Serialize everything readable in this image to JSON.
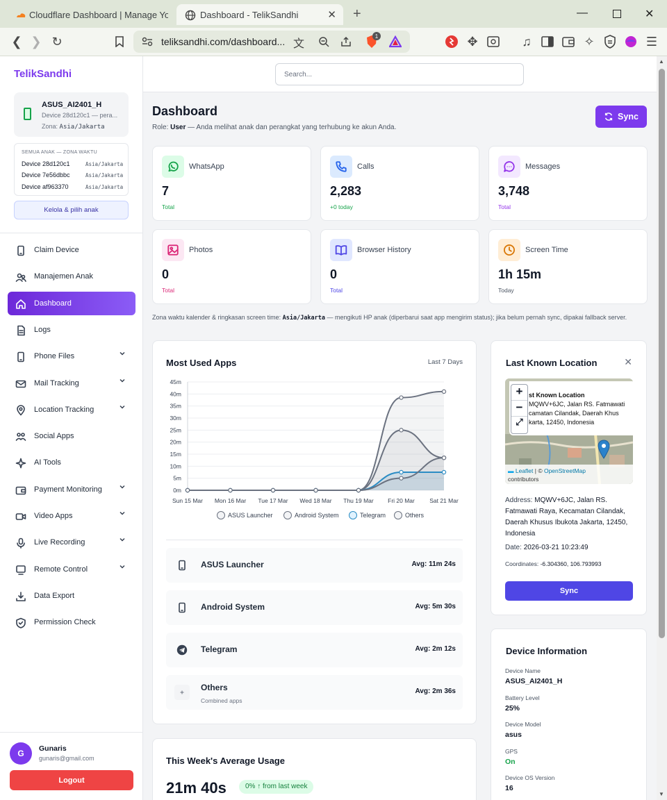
{
  "browser": {
    "tabs": [
      {
        "title": "Cloudflare Dashboard | Manage Your"
      },
      {
        "title": "Dashboard - TelikSandhi"
      }
    ],
    "url": "teliksandhi.com/dashboard...",
    "brave_badge": "1"
  },
  "sidebar": {
    "brand": "TelikSandhi",
    "device": {
      "name": "ASUS_AI2401_H",
      "sub": "Device 28d120c1 — pera...",
      "zone_label": "Zona:",
      "zone": "Asia/Jakarta"
    },
    "kids": {
      "title": "SEMUA ANAK — ZONA WAKTU",
      "items": [
        {
          "name": "Device 28d120c1",
          "zone": "Asia/Jakarta"
        },
        {
          "name": "Device 7e56dbbc",
          "zone": "Asia/Jakarta"
        },
        {
          "name": "Device af963370",
          "zone": "Asia/Jakarta"
        }
      ],
      "manage_label": "Kelola & pilih anak"
    },
    "nav": [
      {
        "label": "Claim Device",
        "icon": "phone-icon",
        "chevron": false
      },
      {
        "label": "Manajemen Anak",
        "icon": "users-icon",
        "chevron": false
      },
      {
        "label": "Dashboard",
        "icon": "home-icon",
        "chevron": false,
        "active": true
      },
      {
        "label": "Logs",
        "icon": "file-icon",
        "chevron": false
      },
      {
        "label": "Phone Files",
        "icon": "phone-icon",
        "chevron": true
      },
      {
        "label": "Mail Tracking",
        "icon": "mail-icon",
        "chevron": true
      },
      {
        "label": "Location Tracking",
        "icon": "map-pin-icon",
        "chevron": true
      },
      {
        "label": "Social Apps",
        "icon": "social-icon",
        "chevron": false
      },
      {
        "label": "AI Tools",
        "icon": "sparkle-icon",
        "chevron": false
      },
      {
        "label": "Payment Monitoring",
        "icon": "wallet-icon",
        "chevron": true
      },
      {
        "label": "Video Apps",
        "icon": "video-icon",
        "chevron": true
      },
      {
        "label": "Live Recording",
        "icon": "mic-icon",
        "chevron": true
      },
      {
        "label": "Remote Control",
        "icon": "remote-icon",
        "chevron": true
      },
      {
        "label": "Data Export",
        "icon": "download-icon",
        "chevron": false
      },
      {
        "label": "Permission Check",
        "icon": "shield-icon",
        "chevron": false
      }
    ],
    "user": {
      "initial": "G",
      "name": "Gunaris",
      "email": "gunaris@gmail.com"
    },
    "logout_label": "Logout"
  },
  "main": {
    "search_placeholder": "Search...",
    "title": "Dashboard",
    "role_prefix": "Role:",
    "role": "User",
    "role_desc": "— Anda melihat anak dan perangkat yang terhubung ke akun Anda.",
    "sync_label": "Sync",
    "stats": [
      {
        "label": "WhatsApp",
        "value": "7",
        "sub": "Total",
        "icon": "whatsapp-icon",
        "color": "#16a34a",
        "bg": "#dcfce7"
      },
      {
        "label": "Calls",
        "value": "2,283",
        "sub": "+0 today",
        "icon": "call-icon",
        "color": "#2563eb",
        "bg": "#dbeafe"
      },
      {
        "label": "Messages",
        "value": "3,748",
        "sub": "Total",
        "icon": "message-icon",
        "color": "#9333ea",
        "bg": "#f3e8ff"
      },
      {
        "label": "Photos",
        "value": "0",
        "sub": "Total",
        "icon": "photo-icon",
        "color": "#db2777",
        "bg": "#fce7f3"
      },
      {
        "label": "Browser History",
        "value": "0",
        "sub": "Total",
        "icon": "book-icon",
        "color": "#4f46e5",
        "bg": "#e0e7ff"
      },
      {
        "label": "Screen Time",
        "value": "1h 15m",
        "sub": "Today",
        "icon": "clock-icon",
        "color": "#d97706",
        "bg": "#ffedd5"
      }
    ],
    "tz_prefix": "Zona waktu kalender & ringkasan screen time:",
    "tz_value": "Asia/Jakarta",
    "tz_suffix": "— mengikuti HP anak (diperbarui saat app mengirim status); jika belum pernah sync, dipakai fallback server."
  },
  "most_used": {
    "title": "Most Used Apps",
    "range": "Last 7 Days",
    "apps": [
      {
        "name": "ASUS Launcher",
        "avg": "Avg: 11m 24s",
        "icon": "phone-icon"
      },
      {
        "name": "Android System",
        "avg": "Avg: 5m 30s",
        "icon": "phone-icon"
      },
      {
        "name": "Telegram",
        "avg": "Avg: 2m 12s",
        "icon": "telegram-icon"
      },
      {
        "name": "Others",
        "sub": "Combined apps",
        "avg": "Avg: 2m 36s",
        "icon": "plus-icon"
      }
    ]
  },
  "chart_data": {
    "type": "area",
    "categories": [
      "Sun 15 Mar",
      "Mon 16 Mar",
      "Tue 17 Mar",
      "Wed 18 Mar",
      "Thu 19 Mar",
      "Fri 20 Mar",
      "Sat 21 Mar"
    ],
    "y_ticks": [
      "0m",
      "5m",
      "10m",
      "15m",
      "20m",
      "25m",
      "30m",
      "35m",
      "40m",
      "45m"
    ],
    "ylim": [
      0,
      45
    ],
    "grid": true,
    "legend": "bottom",
    "series": [
      {
        "name": "ASUS Launcher",
        "values": [
          0,
          0,
          0,
          0,
          0,
          38.5,
          41
        ],
        "color": "#6b7280"
      },
      {
        "name": "Android System",
        "values": [
          0,
          0,
          0,
          0,
          0,
          25,
          13.5
        ],
        "color": "#6b7280"
      },
      {
        "name": "Telegram",
        "values": [
          0,
          0,
          0,
          0,
          0,
          7.5,
          7.5
        ],
        "color": "#2b8cc4"
      },
      {
        "name": "Others",
        "values": [
          0,
          0,
          0,
          0,
          0,
          5,
          13.5
        ],
        "color": "#6b7280"
      }
    ]
  },
  "location": {
    "title": "Last Known Location",
    "popup_title": "st Known Location",
    "popup_text": "MQWV+6JC, Jalan RS. Fatmawati \ncamatan Cilandak, Daerah Khus\nkarta, 12450, Indonesia",
    "attribution_leaflet": "Leaflet",
    "attribution_osm": "OpenStreetMap",
    "attribution_tail": "contributors",
    "address_label": "Address:",
    "address": "MQWV+6JC, Jalan RS. Fatmawati Raya, Kecamatan Cilandak, Daerah Khusus Ibukota Jakarta, 12450, Indonesia",
    "date_label": "Date:",
    "date": "2026-03-21 10:23:49",
    "coords_label": "Coordinates:",
    "coords": "-6.304360, 106.793993",
    "sync_label": "Sync"
  },
  "device_info": {
    "title": "Device Information",
    "fields": [
      {
        "key": "Device Name",
        "value": "ASUS_AI2401_H"
      },
      {
        "key": "Battery Level",
        "value": "25%"
      },
      {
        "key": "Device Model",
        "value": "asus"
      },
      {
        "key": "GPS",
        "value": "On",
        "color": "#16a34a"
      },
      {
        "key": "Device OS Version",
        "value": "16"
      }
    ]
  },
  "weekly": {
    "title": "This Week's Average Usage",
    "value": "21m 40s",
    "badge": "0% ↑ from last week"
  }
}
